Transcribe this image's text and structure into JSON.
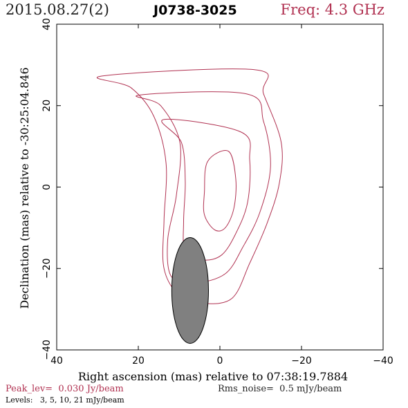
{
  "header": {
    "date": "2015.08.27(2)",
    "source": "J0738-3025",
    "freq": "Freq: 4.3 GHz"
  },
  "chart_data": {
    "type": "contour",
    "xlabel": "Right ascension (mas) relative to 07:38:19.7884",
    "ylabel": "Declination (mas) relative to -30:25:04.846",
    "xlim": [
      40,
      -40
    ],
    "ylim": [
      -40,
      40
    ],
    "xticks": [
      "40",
      "20",
      "0",
      "−20",
      "−40"
    ],
    "yticks": [
      "−40",
      "−20",
      "0",
      "20",
      "40"
    ],
    "x_reversed": true,
    "contour_color": "#b03050",
    "beam_color": "#808080",
    "levels_mJy": [
      3,
      5,
      10,
      21
    ],
    "contours": [
      {
        "level": 3,
        "points": [
          [
            -8.6,
            28.8
          ],
          [
            -10.7,
            22.9
          ],
          [
            -15.0,
            11.1
          ],
          [
            -14.6,
            1.1
          ],
          [
            -11.6,
            -8.8
          ],
          [
            -7.3,
            -18.7
          ],
          [
            -3.0,
            -27.3
          ],
          [
            4.2,
            -28.6
          ],
          [
            9.8,
            -26.8
          ],
          [
            13.7,
            -20.0
          ],
          [
            13.7,
            -8.2
          ],
          [
            13.2,
            5.9
          ],
          [
            16.2,
            17.4
          ],
          [
            21.8,
            24.4
          ],
          [
            28.7,
            27.3
          ],
          [
            -8.6,
            28.8
          ]
        ]
      },
      {
        "level": 5,
        "points": [
          [
            -6.5,
            22.9
          ],
          [
            -10.7,
            16.1
          ],
          [
            -12.4,
            5.0
          ],
          [
            -9.8,
            -6.2
          ],
          [
            -5.6,
            -14.8
          ],
          [
            -1.3,
            -21.3
          ],
          [
            5.9,
            -23.5
          ],
          [
            11.9,
            -22.0
          ],
          [
            12.8,
            -13.0
          ],
          [
            10.7,
            -2.2
          ],
          [
            9.8,
            10.9
          ],
          [
            14.5,
            20.0
          ],
          [
            19.6,
            22.6
          ],
          [
            -6.5,
            22.9
          ]
        ]
      },
      {
        "level": 10,
        "points": [
          [
            -5.2,
            13.5
          ],
          [
            -7.3,
            6.6
          ],
          [
            -6.8,
            -3.7
          ],
          [
            -3.9,
            -11.4
          ],
          [
            -0.4,
            -16.7
          ],
          [
            4.2,
            -17.9
          ],
          [
            8.5,
            -15.7
          ],
          [
            8.9,
            -8.4
          ],
          [
            8.5,
            1.3
          ],
          [
            9.4,
            10.9
          ],
          [
            13.7,
            16.6
          ],
          [
            -5.2,
            13.5
          ]
        ]
      },
      {
        "level": 21,
        "points": [
          [
            -2.1,
            8.8
          ],
          [
            -3.9,
            1.9
          ],
          [
            -3.4,
            -5.3
          ],
          [
            -1.3,
            -10.0
          ],
          [
            1.3,
            -10.5
          ],
          [
            3.8,
            -6.8
          ],
          [
            3.8,
            -1.3
          ],
          [
            3.0,
            6.3
          ],
          [
            -2.1,
            8.8
          ]
        ]
      }
    ],
    "beam": {
      "center": [
        7.3,
        -25.4
      ],
      "major_mas": 26.0,
      "minor_mas": 9.0,
      "pa_deg": 0
    },
    "peak_label": "Peak_lev=",
    "peak_value": "0.030 Jy/beam",
    "rms_label": "Rms_noise=",
    "rms_value": "0.5 mJy/beam",
    "levels_label": "Levels:",
    "levels_text": "3,   5,  10,  21 mJy/beam"
  }
}
